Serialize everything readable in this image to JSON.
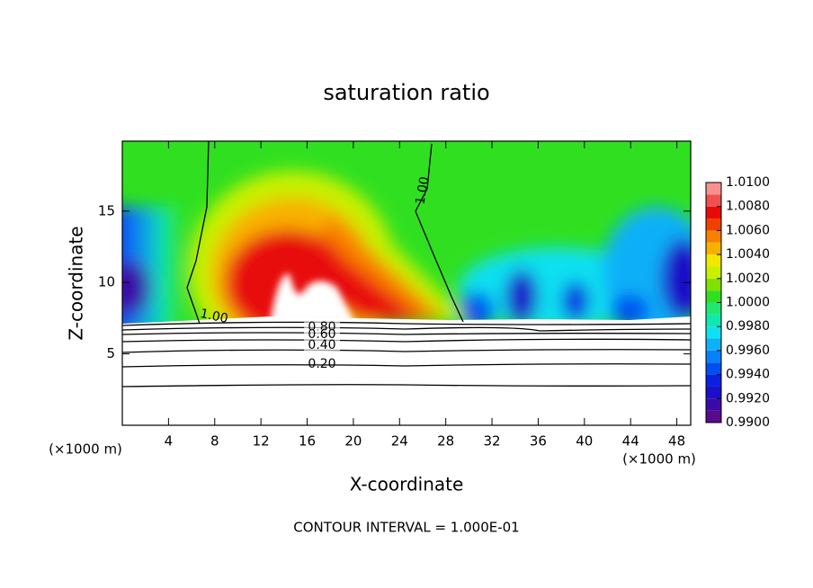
{
  "chart_data": {
    "type": "contour",
    "title": "saturation ratio",
    "xlabel": "X-coordinate",
    "ylabel": "Z-coordinate",
    "x_units": [
      "(×1000 m)",
      "(×1000 m)"
    ],
    "footer": "CONTOUR INTERVAL = 1.000E-01",
    "xlim": [
      0,
      49.2
    ],
    "xticks": [
      4,
      8,
      12,
      16,
      20,
      24,
      28,
      32,
      36,
      40,
      44,
      48
    ],
    "ylim": [
      0,
      19.9
    ],
    "yticks": [
      5,
      10,
      15
    ],
    "contour_labels": [
      {
        "value": 1,
        "label": "1.00"
      },
      {
        "value": 1,
        "label": "1.00"
      },
      {
        "value": 0.8,
        "label": "0.80"
      },
      {
        "value": 0.6,
        "label": "0.60"
      },
      {
        "value": 0.4,
        "label": "0.40"
      },
      {
        "value": 0.2,
        "label": "0.20"
      }
    ],
    "colorbar": {
      "clim": [
        0.99,
        1.01
      ],
      "levels": [
        0.99,
        0.991,
        0.992,
        0.993,
        0.994,
        0.995,
        0.996,
        0.997,
        0.998,
        0.999,
        1.0,
        1.001,
        1.002,
        1.003,
        1.004,
        1.005,
        1.006,
        1.007,
        1.008,
        1.009,
        1.01
      ],
      "colors": [
        "#5a0a8c",
        "#3a0aa8",
        "#1a10c8",
        "#0a20e0",
        "#0050f0",
        "#0a80f8",
        "#10b0f8",
        "#10e0f0",
        "#10e8b0",
        "#20e870",
        "#30e020",
        "#80e000",
        "#c8f000",
        "#f0e800",
        "#f8b000",
        "#f88000",
        "#f04000",
        "#e80a0a",
        "#f05050",
        "#f89090"
      ],
      "ticks": [
        {
          "value": 0.99,
          "label": "0.9900"
        },
        {
          "value": 0.992,
          "label": "0.9920"
        },
        {
          "value": 0.994,
          "label": "0.9940"
        },
        {
          "value": 0.996,
          "label": "0.9960"
        },
        {
          "value": 0.998,
          "label": "0.9980"
        },
        {
          "value": 1.0,
          "label": "1.0000"
        },
        {
          "value": 1.002,
          "label": "1.0020"
        },
        {
          "value": 1.004,
          "label": "1.0040"
        },
        {
          "value": 1.006,
          "label": "1.0060"
        },
        {
          "value": 1.008,
          "label": "1.0080"
        },
        {
          "value": 1.01,
          "label": "1.0100"
        }
      ]
    }
  }
}
